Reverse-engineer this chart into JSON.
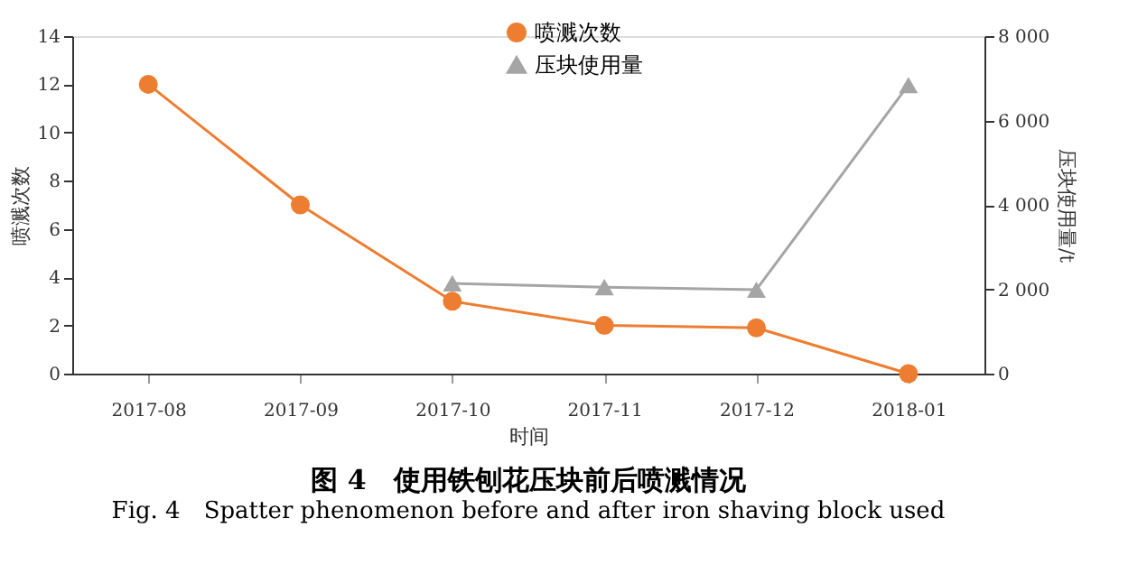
{
  "chart_data": {
    "type": "line",
    "title": "图 4　使用铁刨花压块前后喷溅情况",
    "subtitle": "Fig. 4　Spatter phenomenon before and after iron shaving block used",
    "xlabel": "时间",
    "ylabel": "喷溅次数",
    "y2label": "压块使用量/t",
    "categories": [
      "2017-08",
      "2017-09",
      "2017-10",
      "2017-11",
      "2017-12",
      "2018-01"
    ],
    "series": [
      {
        "name": "喷溅次数",
        "color": "#ed7d31",
        "marker": "circle",
        "values": [
          12,
          7,
          3,
          2,
          1.9,
          0
        ]
      },
      {
        "name": "压块使用量",
        "color": "#a5a5a5",
        "marker": "triangle",
        "axis": "y2",
        "values": [
          null,
          null,
          2140,
          2050,
          1990,
          6840
        ]
      }
    ],
    "ylim": [
      0,
      14
    ],
    "yticks": [
      0,
      2,
      4,
      6,
      8,
      10,
      12,
      14
    ],
    "y2lim": [
      0,
      8000
    ],
    "y2ticks": [
      0,
      {
        "value": 2000,
        "label": "2 000"
      },
      {
        "value": 4000,
        "label": "4 000"
      },
      {
        "value": 6000,
        "label": "6 000"
      },
      {
        "value": 8000,
        "label": "8 000"
      }
    ],
    "legend": "top",
    "grid": false,
    "line_style": "solid"
  }
}
